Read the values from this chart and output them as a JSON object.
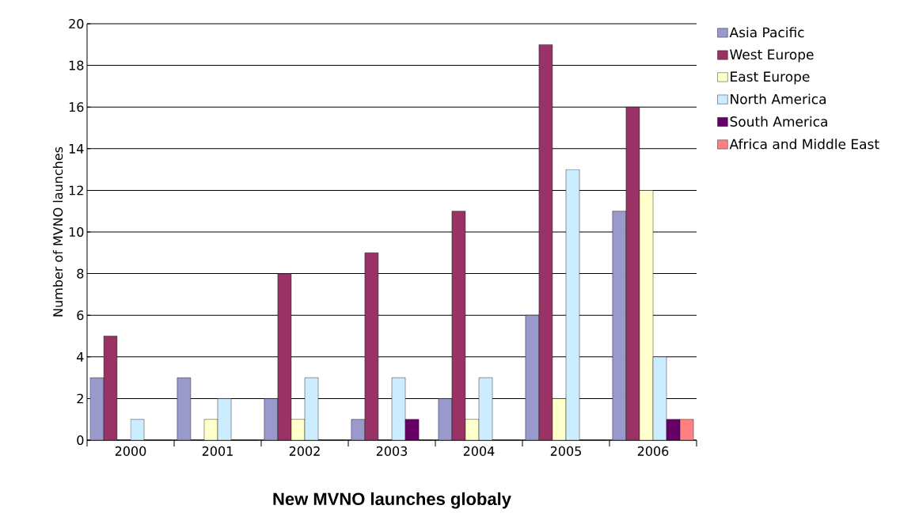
{
  "chart_data": {
    "type": "bar",
    "title": "New MVNO launches globaly",
    "ylabel": "Number of MVNO launches",
    "categories": [
      "2000",
      "2001",
      "2002",
      "2003",
      "2004",
      "2005",
      "2006"
    ],
    "series": [
      {
        "name": "Asia Pacific",
        "color": "#9999cc",
        "values": [
          3,
          3,
          2,
          1,
          2,
          6,
          11
        ]
      },
      {
        "name": "West Europe",
        "color": "#993366",
        "values": [
          5,
          0,
          8,
          9,
          11,
          19,
          16
        ]
      },
      {
        "name": "East Europe",
        "color": "#ffffcc",
        "values": [
          0,
          1,
          1,
          0,
          1,
          2,
          12
        ]
      },
      {
        "name": "North America",
        "color": "#ccecff",
        "values": [
          1,
          2,
          3,
          3,
          3,
          13,
          4
        ]
      },
      {
        "name": "South America",
        "color": "#660066",
        "values": [
          0,
          0,
          0,
          1,
          0,
          0,
          1
        ]
      },
      {
        "name": "Africa and Middle East",
        "color": "#ff8080",
        "values": [
          0,
          0,
          0,
          0,
          0,
          0,
          1
        ]
      }
    ],
    "ylim": [
      0,
      20
    ],
    "yticks": [
      0,
      2,
      4,
      6,
      8,
      10,
      12,
      14,
      16,
      18,
      20
    ],
    "grid": "y",
    "legend": "right"
  }
}
